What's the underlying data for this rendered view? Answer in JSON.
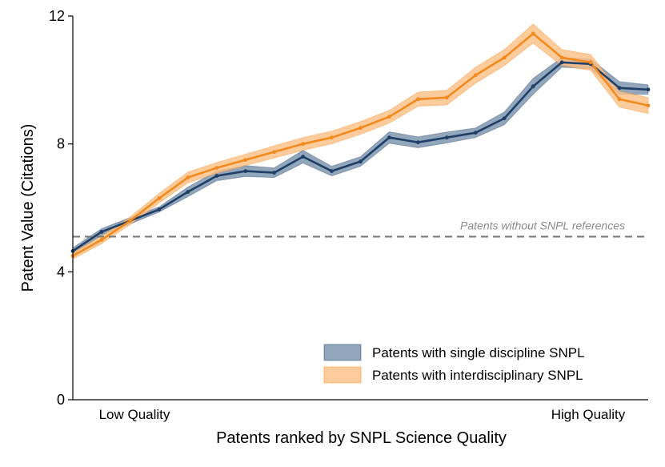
{
  "chart_data": {
    "type": "line",
    "xlabel": "Patents ranked by SNPL Science Quality",
    "ylabel": "Patent Value (Citations)",
    "ylim": [
      0,
      12
    ],
    "yticks": [
      0,
      4,
      8,
      12
    ],
    "x_endpoint_labels": {
      "low": "Low Quality",
      "high": "High Quality"
    },
    "x": [
      1,
      2,
      3,
      4,
      5,
      6,
      7,
      8,
      9,
      10,
      11,
      12,
      13,
      14,
      15,
      16,
      17,
      18,
      19,
      20,
      21
    ],
    "series": [
      {
        "name": "Patents with single discipline SNPL",
        "color": "#1f3f66",
        "band_color": "#6f8aa5",
        "values": [
          4.65,
          5.25,
          5.6,
          5.95,
          6.5,
          7.0,
          7.15,
          7.1,
          7.6,
          7.15,
          7.45,
          8.2,
          8.05,
          8.2,
          8.35,
          8.8,
          9.8,
          10.55,
          10.5,
          9.75,
          9.7
        ],
        "lower": [
          4.55,
          5.15,
          5.5,
          5.87,
          6.35,
          6.85,
          6.98,
          6.95,
          7.4,
          7.0,
          7.3,
          8.02,
          7.88,
          8.03,
          8.2,
          8.6,
          9.55,
          10.4,
          10.35,
          9.55,
          9.55
        ],
        "upper": [
          4.75,
          5.35,
          5.7,
          6.03,
          6.65,
          7.15,
          7.32,
          7.25,
          7.8,
          7.3,
          7.6,
          8.38,
          8.22,
          8.37,
          8.5,
          9.0,
          10.05,
          10.7,
          10.65,
          9.95,
          9.85
        ]
      },
      {
        "name": "Patents with interdisciplinary SNPL",
        "color": "#f28a1e",
        "band_color": "#fdbf85",
        "values": [
          4.5,
          5.0,
          5.6,
          6.3,
          6.95,
          7.25,
          7.5,
          7.75,
          8.0,
          8.2,
          8.5,
          8.85,
          9.4,
          9.45,
          10.15,
          10.7,
          11.45,
          10.7,
          10.55,
          9.4,
          9.2
        ],
        "lower": [
          4.4,
          4.88,
          5.48,
          6.15,
          6.78,
          7.08,
          7.32,
          7.56,
          7.8,
          8.0,
          8.3,
          8.65,
          9.18,
          9.22,
          9.9,
          10.45,
          11.15,
          10.45,
          10.3,
          9.15,
          8.95
        ],
        "upper": [
          4.6,
          5.12,
          5.72,
          6.45,
          7.12,
          7.42,
          7.68,
          7.94,
          8.2,
          8.4,
          8.7,
          9.05,
          9.62,
          9.68,
          10.4,
          10.95,
          11.75,
          10.95,
          10.8,
          9.65,
          9.45
        ]
      }
    ],
    "reference_line": {
      "y": 5.1,
      "label": "Patents without SNPL references",
      "color": "#7a7a7a"
    },
    "legend_placement": "bottom-right",
    "grid": false
  }
}
